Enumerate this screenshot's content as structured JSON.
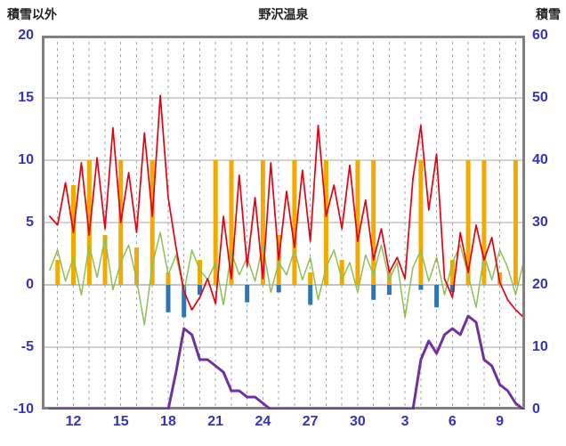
{
  "header": {
    "left_axis_title": "積雪以外",
    "title": "野沢温泉",
    "right_axis_title": "積雪"
  },
  "style": {
    "axis_label_color": "#3333bb",
    "title_color": "#222222",
    "grid_color": "#a6a6a6",
    "frame_color": "#808080",
    "background": "#ffffff"
  },
  "chart_data": {
    "type": "line",
    "title": "野沢温泉",
    "left_axis": {
      "label": "積雪以外",
      "min": -10,
      "max": 20,
      "ticks": [
        20,
        15,
        10,
        5,
        0,
        -5,
        -10
      ]
    },
    "right_axis": {
      "label": "積雪",
      "min": 0,
      "max": 60,
      "ticks": [
        60,
        50,
        40,
        30,
        20,
        10,
        0
      ]
    },
    "x_axis": {
      "min": 10,
      "max": 40.6,
      "grid_start": 11,
      "grid_end": 40,
      "grid_interval": 1,
      "tick_days": [
        12,
        15,
        18,
        21,
        24,
        27,
        30,
        33,
        36,
        39
      ],
      "tick_labels": [
        "12",
        "15",
        "18",
        "21",
        "24",
        "27",
        "30",
        "3",
        "6",
        "9"
      ]
    },
    "series": [
      {
        "name": "sunshine-bars",
        "type": "bar",
        "axis": "left",
        "color": "#f2a900",
        "bar_width_days": 0.28,
        "x_start": 11,
        "x_step": 1,
        "values": [
          2,
          8,
          10,
          4,
          10,
          3,
          10,
          1,
          0,
          2,
          10,
          10,
          0,
          10,
          4,
          10,
          1,
          10,
          2,
          10,
          10,
          1,
          0,
          10,
          0,
          2,
          10,
          10,
          1,
          10
        ]
      },
      {
        "name": "precipitation-bars",
        "type": "bar",
        "axis": "left",
        "color": "#2e75b6",
        "bar_width_days": 0.28,
        "x_start": 11,
        "x_step": 1,
        "values": [
          0,
          0,
          0,
          0,
          0,
          0,
          0,
          -2.2,
          -2.6,
          -0.8,
          0,
          0,
          -1.4,
          0,
          -0.6,
          0,
          -1.6,
          0,
          0,
          0,
          -1.2,
          -0.8,
          0,
          -0.4,
          -1.8,
          -0.6,
          0,
          0,
          0,
          0
        ]
      },
      {
        "name": "green-line",
        "type": "line",
        "axis": "left",
        "color": "#8dc053",
        "width": 1.5,
        "x_start": 10.5,
        "x_step": 0.5,
        "values": [
          1.2,
          2.8,
          0.3,
          2.2,
          -0.8,
          3.2,
          0.6,
          3.8,
          -0.4,
          1.8,
          3.2,
          0.4,
          -3.2,
          1.6,
          4.2,
          0.8,
          2.4,
          -0.6,
          2.8,
          1.2,
          0.4,
          1.8,
          -1.6,
          2.6,
          0.8,
          2.2,
          0.3,
          3.2,
          -0.6,
          1.8,
          0.8,
          2.8,
          0.4,
          2.2,
          -1.2,
          1.4,
          2.8,
          0.4,
          1.8,
          -0.6,
          2.4,
          0.8,
          3.2,
          0.4,
          1.8,
          -2.6,
          1.4,
          2.8,
          0.3,
          2.2,
          -0.8,
          1.8,
          3.2,
          0.8,
          -1.8,
          2.4,
          0.4,
          2.8,
          1.4,
          -0.8,
          1.8
        ]
      },
      {
        "name": "temperature-line",
        "type": "line",
        "axis": "left",
        "color": "#e60012",
        "width": 1.7,
        "x_start": 10.5,
        "x_step": 0.5,
        "values": [
          5.5,
          4.8,
          8.2,
          4.2,
          9.8,
          4.0,
          10.2,
          4.5,
          12.6,
          5.0,
          9.0,
          4.2,
          12.2,
          5.5,
          15.2,
          7.0,
          3.0,
          -0.5,
          -2.0,
          -1.0,
          0.5,
          -1.5,
          5.5,
          0.5,
          8.8,
          1.5,
          7.0,
          0.5,
          9.8,
          2.0,
          7.5,
          3.0,
          9.2,
          3.5,
          12.8,
          5.5,
          8.0,
          4.5,
          9.6,
          3.5,
          6.8,
          2.0,
          4.5,
          1.0,
          2.2,
          0.5,
          8.5,
          12.8,
          6.0,
          10.5,
          0.5,
          -1.0,
          4.2,
          1.0,
          4.8,
          2.0,
          3.8,
          0.2,
          -1.2,
          -2.0,
          -2.6
        ]
      },
      {
        "name": "snow-depth-line",
        "type": "line",
        "axis": "right",
        "color": "#7030a0",
        "width": 3,
        "x_start": 10.5,
        "x_step": 0.5,
        "values": [
          0,
          0,
          0,
          0,
          0,
          0,
          0,
          0,
          0,
          0,
          0,
          0,
          0,
          0,
          0,
          0,
          6,
          13,
          12,
          8,
          8,
          7,
          6,
          3,
          3,
          2,
          2,
          1,
          0,
          0,
          0,
          0,
          0,
          0,
          0,
          0,
          0,
          0,
          0,
          0,
          0,
          0,
          0,
          0,
          0,
          0,
          0,
          8,
          11,
          9,
          12,
          13,
          12,
          15,
          14,
          8,
          7,
          4,
          3,
          1,
          0
        ]
      }
    ]
  }
}
